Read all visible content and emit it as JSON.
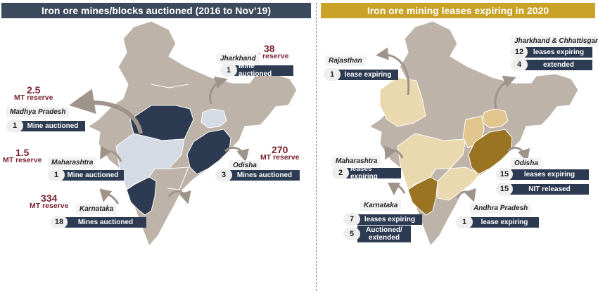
{
  "left": {
    "title": "Iron ore mines/blocks auctioned (2016 to Nov’19)",
    "reserve_unit": "MT reserve",
    "jharkhand": {
      "name": "Jharkhand",
      "reserve": "38",
      "count": "1",
      "label": "Mine auctioned"
    },
    "madhya_pradesh": {
      "name": "Madhya Pradesh",
      "reserve": "2.5",
      "count": "1",
      "label": "Mine auctioned"
    },
    "maharashtra": {
      "name": "Maharashtra",
      "reserve": "1.5",
      "count": "1",
      "label": "Mine auctioned"
    },
    "odisha": {
      "name": "Odisha",
      "reserve": "270",
      "count": "3",
      "label": "Mines auctioned"
    },
    "karnataka": {
      "name": "Karnataka",
      "reserve": "334",
      "count": "18",
      "label": "Mines auctioned"
    }
  },
  "right": {
    "title": "Iron ore mining leases expiring in 2020",
    "rajasthan": {
      "name": "Rajasthan",
      "count": "1",
      "label": "lease expiring"
    },
    "jharkhand_chhattisgarh": {
      "name": "Jharkhand & Chhattisgarh",
      "count1": "12",
      "label1": "leases expiring",
      "count2": "4",
      "label2": "extended"
    },
    "maharashtra": {
      "name": "Maharashtra",
      "count": "2",
      "label": "leases expiring"
    },
    "odisha": {
      "name": "Odisha",
      "count1": "15",
      "label1": "leases expiring",
      "count2": "15",
      "label2": "NIT released"
    },
    "karnataka": {
      "name": "Karnataka",
      "count1": "7",
      "label1": "leases expiring",
      "count2": "5",
      "label2": "Auctioned/ extended"
    },
    "andhra_pradesh": {
      "name": "Andhra Pradesh",
      "count": "1",
      "label": "lease expiring"
    }
  },
  "colors": {
    "left_header": "#3b4a5c",
    "right_header": "#c9a227",
    "map_base": "#bdb3a8",
    "left_dark": "#2d3b52",
    "left_light": "#d5dbe5",
    "right_light": "#ead8ae",
    "right_mid": "#e0c58d",
    "right_dark": "#9b7423",
    "reserve_text": "#7a2330"
  }
}
